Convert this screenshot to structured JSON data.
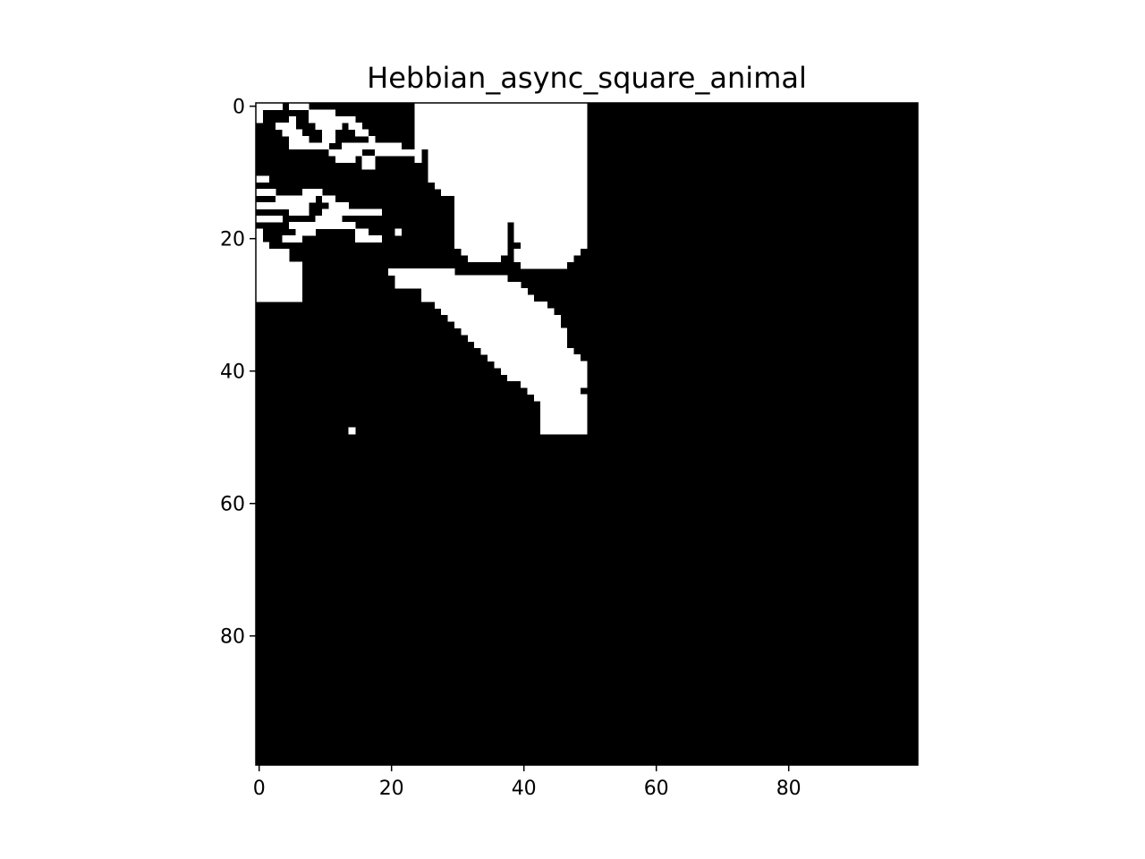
{
  "chart_data": {
    "type": "heatmap",
    "title": "Hebbian_async_square_animal",
    "xlabel": "",
    "ylabel": "",
    "grid": false,
    "colormap": "binary",
    "colors": {
      "on": "#ffffff",
      "off": "#000000"
    },
    "rows": 100,
    "cols": 100,
    "xlim": [
      -0.5,
      99.5
    ],
    "ylim": [
      99.5,
      -0.5
    ],
    "xticks": [
      0,
      20,
      40,
      60,
      80
    ],
    "yticks": [
      0,
      20,
      40,
      60,
      80
    ],
    "xtick_labels": [
      "0",
      "20",
      "40",
      "60",
      "80"
    ],
    "ytick_labels": [
      "0",
      "20",
      "40",
      "60",
      "80"
    ],
    "value_encoding": "white (1) cells as run-length intervals per row: [row, col_start, col_end_inclusive]; all other cells are black (0)",
    "white_runs": [
      [
        0,
        0,
        3
      ],
      [
        0,
        5,
        7
      ],
      [
        0,
        24,
        49
      ],
      [
        1,
        0,
        0
      ],
      [
        1,
        8,
        11
      ],
      [
        1,
        24,
        49
      ],
      [
        2,
        0,
        0
      ],
      [
        2,
        5,
        5
      ],
      [
        2,
        8,
        14
      ],
      [
        2,
        24,
        49
      ],
      [
        3,
        3,
        5
      ],
      [
        3,
        9,
        12
      ],
      [
        3,
        14,
        15
      ],
      [
        3,
        24,
        49
      ],
      [
        4,
        4,
        6
      ],
      [
        4,
        10,
        11
      ],
      [
        4,
        15,
        16
      ],
      [
        4,
        24,
        49
      ],
      [
        5,
        5,
        7
      ],
      [
        5,
        10,
        11
      ],
      [
        5,
        17,
        17
      ],
      [
        5,
        24,
        49
      ],
      [
        6,
        5,
        10
      ],
      [
        6,
        13,
        21
      ],
      [
        6,
        24,
        49
      ],
      [
        7,
        11,
        15
      ],
      [
        7,
        18,
        24
      ],
      [
        7,
        26,
        49
      ],
      [
        8,
        12,
        14
      ],
      [
        8,
        16,
        17
      ],
      [
        8,
        24,
        24
      ],
      [
        8,
        26,
        49
      ],
      [
        9,
        16,
        17
      ],
      [
        9,
        26,
        49
      ],
      [
        10,
        26,
        49
      ],
      [
        11,
        0,
        1
      ],
      [
        11,
        26,
        49
      ],
      [
        12,
        27,
        49
      ],
      [
        13,
        0,
        2
      ],
      [
        13,
        7,
        9
      ],
      [
        13,
        28,
        49
      ],
      [
        14,
        3,
        8
      ],
      [
        14,
        10,
        11
      ],
      [
        14,
        30,
        49
      ],
      [
        15,
        0,
        7
      ],
      [
        15,
        11,
        13
      ],
      [
        15,
        30,
        49
      ],
      [
        16,
        5,
        7
      ],
      [
        16,
        10,
        18
      ],
      [
        16,
        30,
        49
      ],
      [
        17,
        0,
        3
      ],
      [
        17,
        9,
        12
      ],
      [
        17,
        30,
        49
      ],
      [
        18,
        5,
        14
      ],
      [
        18,
        30,
        37
      ],
      [
        18,
        39,
        49
      ],
      [
        19,
        0,
        0
      ],
      [
        19,
        6,
        8
      ],
      [
        19,
        15,
        16
      ],
      [
        19,
        21,
        21
      ],
      [
        19,
        30,
        37
      ],
      [
        19,
        39,
        49
      ],
      [
        20,
        0,
        0
      ],
      [
        20,
        4,
        6
      ],
      [
        20,
        15,
        18
      ],
      [
        20,
        30,
        37
      ],
      [
        20,
        39,
        49
      ],
      [
        21,
        0,
        1
      ],
      [
        21,
        30,
        37
      ],
      [
        21,
        40,
        49
      ],
      [
        22,
        0,
        4
      ],
      [
        22,
        31,
        37
      ],
      [
        22,
        39,
        48
      ],
      [
        23,
        0,
        4
      ],
      [
        23,
        32,
        36
      ],
      [
        23,
        39,
        47
      ],
      [
        24,
        0,
        6
      ],
      [
        24,
        40,
        46
      ],
      [
        25,
        0,
        6
      ],
      [
        25,
        20,
        29
      ],
      [
        26,
        0,
        6
      ],
      [
        26,
        21,
        37
      ],
      [
        27,
        0,
        6
      ],
      [
        27,
        21,
        39
      ],
      [
        28,
        0,
        6
      ],
      [
        28,
        25,
        40
      ],
      [
        29,
        0,
        6
      ],
      [
        29,
        25,
        41
      ],
      [
        30,
        27,
        43
      ],
      [
        31,
        28,
        44
      ],
      [
        32,
        29,
        45
      ],
      [
        33,
        30,
        45
      ],
      [
        34,
        31,
        46
      ],
      [
        35,
        32,
        46
      ],
      [
        36,
        33,
        46
      ],
      [
        37,
        34,
        47
      ],
      [
        38,
        35,
        48
      ],
      [
        39,
        36,
        49
      ],
      [
        40,
        37,
        49
      ],
      [
        41,
        38,
        49
      ],
      [
        42,
        40,
        49
      ],
      [
        43,
        41,
        48
      ],
      [
        44,
        42,
        49
      ],
      [
        45,
        43,
        49
      ],
      [
        46,
        43,
        49
      ],
      [
        47,
        43,
        49
      ],
      [
        48,
        43,
        49
      ],
      [
        49,
        14,
        14
      ],
      [
        49,
        43,
        49
      ]
    ]
  }
}
